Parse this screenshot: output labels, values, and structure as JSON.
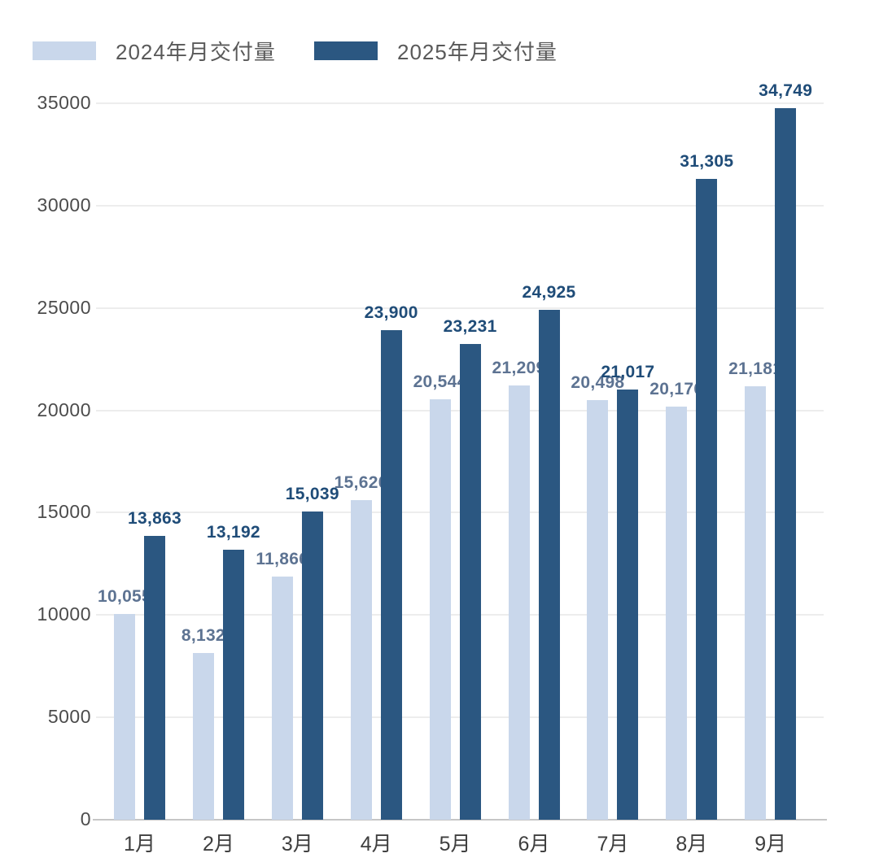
{
  "legend": {
    "items": [
      {
        "label": "2024年月交付量",
        "color": "#c9d7eb"
      },
      {
        "label": "2025年月交付量",
        "color": "#2b5781"
      }
    ]
  },
  "chart_data": {
    "type": "bar",
    "title": "",
    "xlabel": "",
    "ylabel": "",
    "categories": [
      "1月",
      "2月",
      "3月",
      "4月",
      "5月",
      "6月",
      "7月",
      "8月",
      "9月"
    ],
    "series": [
      {
        "name": "2024年月交付量",
        "color": "#c9d7eb",
        "label_color": "#5d7392",
        "values": [
          10055,
          8132,
          11866,
          15620,
          20544,
          21209,
          20498,
          20176,
          21181
        ]
      },
      {
        "name": "2025年月交付量",
        "color": "#2b5781",
        "label_color": "#1f4c78",
        "values": [
          13863,
          13192,
          15039,
          23900,
          23231,
          24925,
          21017,
          31305,
          34749
        ]
      }
    ],
    "ylim": [
      0,
      35000
    ],
    "ytick_step": 5000,
    "ytick_labels": [
      "0",
      "5000",
      "10000",
      "15000",
      "20000",
      "25000",
      "30000",
      "35000"
    ],
    "grid": "horizontal",
    "legend_position": "top-left",
    "value_labels": "on",
    "value_label_format": "thousands-comma"
  },
  "colors": {
    "grid": "#ededed",
    "axis": "#c6c6c6",
    "ytick_text": "#4c4c4c",
    "month_text": "#3e3e3e",
    "legend_text": "#595959",
    "background": "#ffffff"
  }
}
